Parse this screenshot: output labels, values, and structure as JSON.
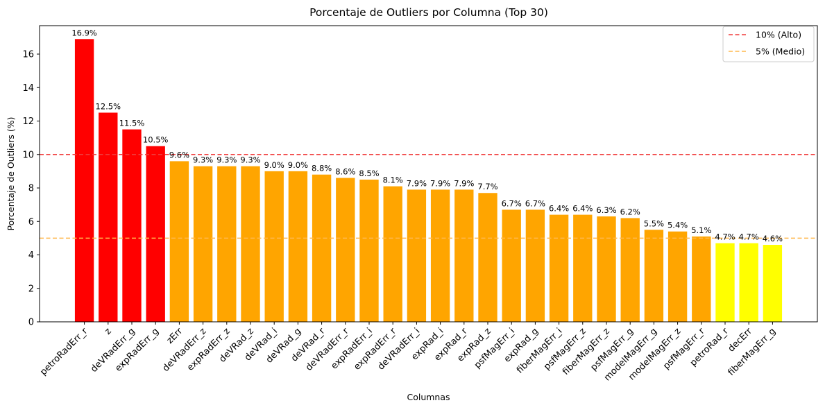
{
  "chart_data": {
    "type": "bar",
    "title": "Porcentaje de Outliers por Columna (Top 30)",
    "xlabel": "Columnas",
    "ylabel": "Porcentaje de Outliers (%)",
    "ylim": [
      0,
      17.7
    ],
    "yticks": [
      0,
      2,
      4,
      6,
      8,
      10,
      12,
      14,
      16
    ],
    "categories": [
      "petroRadErr_r",
      "z",
      "deVRadErr_g",
      "expRadErr_g",
      "zErr",
      "deVRadErr_z",
      "expRadErr_z",
      "deVRad_z",
      "deVRad_i",
      "deVRad_g",
      "deVRad_r",
      "deVRadErr_r",
      "expRadErr_i",
      "expRadErr_r",
      "deVRadErr_i",
      "expRad_i",
      "expRad_r",
      "expRad_z",
      "psfMagErr_i",
      "expRad_g",
      "fiberMagErr_i",
      "psfMagErr_z",
      "fiberMagErr_z",
      "psfMagErr_g",
      "modelMagErr_g",
      "modelMagErr_z",
      "psfMagErr_r",
      "petroRad_r",
      "decErr",
      "fiberMagErr_g"
    ],
    "values": [
      16.9,
      12.5,
      11.5,
      10.5,
      9.6,
      9.3,
      9.3,
      9.3,
      9.0,
      9.0,
      8.8,
      8.6,
      8.5,
      8.1,
      7.9,
      7.9,
      7.9,
      7.7,
      6.7,
      6.7,
      6.4,
      6.4,
      6.3,
      6.2,
      5.5,
      5.4,
      5.1,
      4.7,
      4.7,
      4.6
    ],
    "bar_labels": [
      "16.9%",
      "12.5%",
      "11.5%",
      "10.5%",
      "9.6%",
      "9.3%",
      "9.3%",
      "9.3%",
      "9.0%",
      "9.0%",
      "8.8%",
      "8.6%",
      "8.5%",
      "8.1%",
      "7.9%",
      "7.9%",
      "7.9%",
      "7.7%",
      "6.7%",
      "6.7%",
      "6.4%",
      "6.4%",
      "6.3%",
      "6.2%",
      "5.5%",
      "5.4%",
      "5.1%",
      "4.7%",
      "4.7%",
      "4.6%"
    ],
    "bar_colors": {
      "alto": "#ff0000",
      "medio": "#ffa500",
      "bajo": "#ffff00"
    },
    "reference_lines": [
      {
        "name": "10% (Alto)",
        "value": 10,
        "color": "#f03c3c",
        "style": "dashed"
      },
      {
        "name": "5% (Medio)",
        "value": 5,
        "color": "#ffb84d",
        "style": "dashed"
      }
    ],
    "legend_position": "top-right",
    "grid": false
  }
}
